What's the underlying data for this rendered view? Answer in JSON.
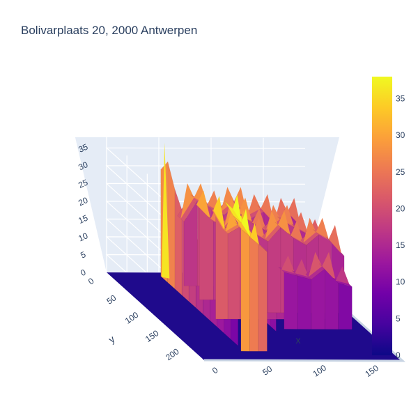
{
  "title": "Bolivarplaats 20, 2000 Antwerpen",
  "chart_data": {
    "type": "surface",
    "title": "Bolivarplaats 20, 2000 Antwerpen",
    "xlabel": "x",
    "ylabel": "y",
    "zlabel": "",
    "x_ticks": [
      "0",
      "50",
      "100",
      "150"
    ],
    "y_ticks": [
      "0",
      "50",
      "100",
      "150",
      "200"
    ],
    "z_ticks": [
      "0",
      "5",
      "10",
      "15",
      "20",
      "25",
      "30",
      "35"
    ],
    "xlim": [
      0,
      190
    ],
    "ylim": [
      0,
      240
    ],
    "zlim": [
      0,
      38
    ],
    "colorscale": [
      "#0d0887",
      "#46039f",
      "#7201a8",
      "#9c179e",
      "#bd3786",
      "#d8576b",
      "#ed7953",
      "#fb9f3a",
      "#fdca26",
      "#f0f921"
    ],
    "colorbar": {
      "min": 0,
      "max": 38,
      "ticks": [
        "0",
        "5",
        "10",
        "15",
        "20",
        "25",
        "30",
        "35"
      ]
    },
    "building_ridges": [
      {
        "x": [
          55,
          150
        ],
        "y": [
          5,
          85
        ],
        "z": [
          [
            0,
            16,
            24,
            22,
            20,
            18,
            20,
            16,
            18,
            14,
            0
          ]
        ]
      },
      {
        "x": [
          45,
          80
        ],
        "y": [
          0,
          175
        ],
        "z": [
          [
            0,
            38,
            30,
            26,
            24,
            22,
            20,
            18,
            17,
            16,
            0
          ]
        ]
      },
      {
        "x": [
          100,
          190
        ],
        "y": [
          60,
          110
        ],
        "z": [
          [
            0,
            30,
            26,
            22,
            20,
            22,
            20,
            18,
            16,
            0
          ]
        ]
      },
      {
        "x": [
          100,
          170
        ],
        "y": [
          120,
          160
        ],
        "z": [
          [
            0,
            18,
            16,
            15,
            14,
            12,
            0
          ]
        ]
      }
    ]
  }
}
